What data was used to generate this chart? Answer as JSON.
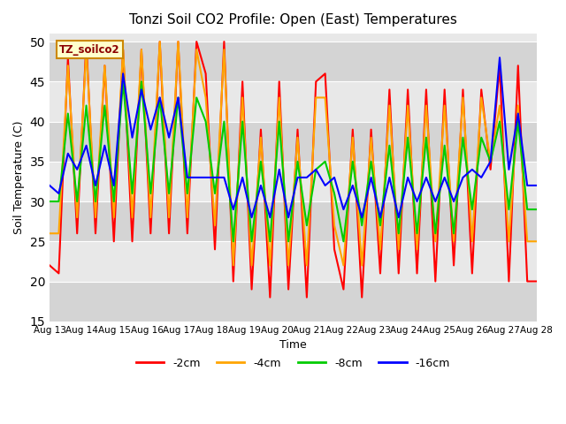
{
  "title": "Tonzi Soil CO2 Profile: Open (East) Temperatures",
  "ylabel": "Soil Temperature (C)",
  "xlabel": "Time",
  "legend_label": "TZ_soilco2",
  "ylim": [
    15,
    51
  ],
  "yticks": [
    15,
    20,
    25,
    30,
    35,
    40,
    45,
    50
  ],
  "series_labels": [
    "-2cm",
    "-4cm",
    "-8cm",
    "-16cm"
  ],
  "series_colors": [
    "#ff0000",
    "#ffa500",
    "#00cc00",
    "#0000ff"
  ],
  "plot_bg": "#e8e8e8",
  "band_colors": [
    "#d8d8d8",
    "#e8e8e8"
  ],
  "x_tick_labels": [
    "Aug 13",
    "Aug 14",
    "Aug 15",
    "Aug 16",
    "Aug 17",
    "Aug 18",
    "Aug 19",
    "Aug 20",
    "Aug 21",
    "Aug 22",
    "Aug 23",
    "Aug 24",
    "Aug 25",
    "Aug 26",
    "Aug 27",
    "Aug 28"
  ],
  "data_2cm": [
    22,
    21,
    48,
    26,
    50,
    26,
    47,
    25,
    49,
    25,
    49,
    26,
    50,
    26,
    50,
    26,
    50,
    46,
    24,
    50,
    20,
    45,
    19,
    39,
    18,
    45,
    19,
    39,
    18,
    45,
    46,
    24,
    19,
    39,
    18,
    39,
    21,
    44,
    21,
    44,
    21,
    44,
    20,
    44,
    22,
    44,
    21,
    44,
    34,
    47,
    20,
    47,
    20,
    20
  ],
  "data_4cm": [
    26,
    26,
    47,
    28,
    49,
    28,
    47,
    28,
    49,
    28,
    49,
    28,
    50,
    28,
    50,
    28,
    49,
    43,
    27,
    49,
    22,
    43,
    22,
    38,
    22,
    43,
    22,
    38,
    22,
    43,
    43,
    27,
    22,
    38,
    22,
    38,
    24,
    42,
    24,
    42,
    24,
    42,
    25,
    42,
    25,
    43,
    25,
    43,
    35,
    42,
    25,
    42,
    25,
    25
  ],
  "data_8cm": [
    30,
    30,
    41,
    30,
    42,
    30,
    42,
    30,
    45,
    31,
    45,
    31,
    43,
    31,
    43,
    31,
    43,
    40,
    31,
    40,
    25,
    40,
    25,
    35,
    25,
    40,
    25,
    35,
    27,
    34,
    35,
    31,
    25,
    35,
    27,
    35,
    27,
    37,
    26,
    38,
    26,
    38,
    26,
    37,
    26,
    38,
    29,
    38,
    35,
    40,
    29,
    40,
    29,
    29
  ],
  "data_16cm": [
    32,
    31,
    36,
    34,
    37,
    32,
    37,
    32,
    46,
    38,
    44,
    39,
    43,
    38,
    43,
    33,
    33,
    33,
    33,
    33,
    29,
    33,
    28,
    32,
    28,
    34,
    28,
    33,
    33,
    34,
    32,
    33,
    29,
    32,
    28,
    33,
    28,
    33,
    28,
    33,
    30,
    33,
    30,
    33,
    30,
    33,
    34,
    33,
    35,
    48,
    34,
    41,
    32,
    32
  ]
}
